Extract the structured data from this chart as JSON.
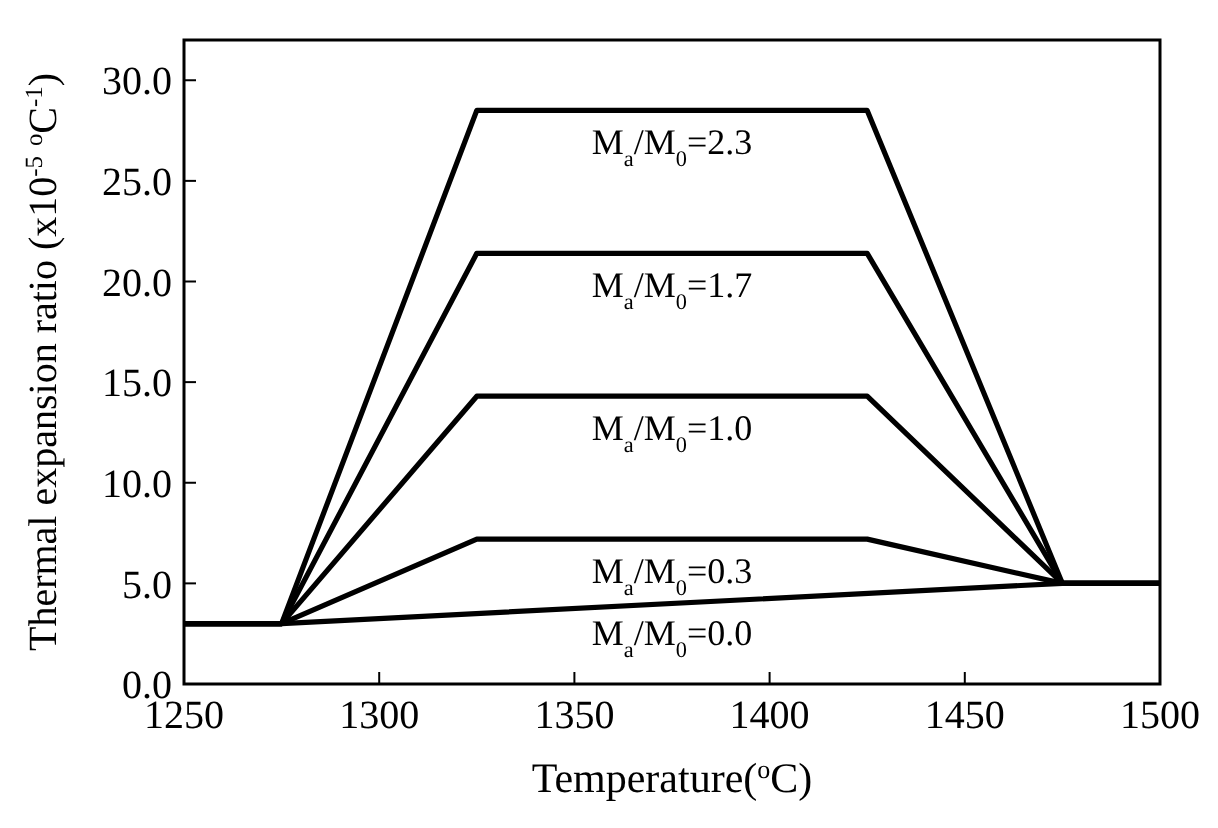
{
  "chart_data": {
    "type": "line",
    "xlabel": "Temperature($^{o}$C)",
    "ylabel": "Thermal expansion ratio (x10$^{-5}$ $^{o}$C$^{-1}$)",
    "xlim": [
      1250,
      1500
    ],
    "xticks": [
      1250,
      1300,
      1350,
      1400,
      1450,
      1500
    ],
    "ylim": [
      0,
      32
    ],
    "yticks": [
      {
        "value": 0,
        "label": "0.0"
      },
      {
        "value": 5,
        "label": "5.0"
      },
      {
        "value": 10,
        "label": "10.0"
      },
      {
        "value": 15,
        "label": "15.0"
      },
      {
        "value": 20,
        "label": "20.0"
      },
      {
        "value": 25,
        "label": "25.0"
      },
      {
        "value": 30,
        "label": "30.0"
      }
    ],
    "grid": false,
    "legend": false,
    "marker": "none",
    "line_style": "solid",
    "series": [
      {
        "name": "M$_{a}$/M$_{0}$=2.3",
        "color": "#000000",
        "x": [
          1250,
          1275,
          1325,
          1425,
          1475,
          1500
        ],
        "values": [
          3.0,
          3.0,
          28.5,
          28.5,
          5.0,
          5.0
        ]
      },
      {
        "name": "M$_{a}$/M$_{0}$=1.7",
        "color": "#000000",
        "x": [
          1250,
          1275,
          1325,
          1425,
          1475,
          1500
        ],
        "values": [
          3.0,
          3.0,
          21.4,
          21.4,
          5.0,
          5.0
        ]
      },
      {
        "name": "M$_{a}$/M$_{0}$=1.0",
        "color": "#000000",
        "x": [
          1250,
          1275,
          1325,
          1425,
          1475,
          1500
        ],
        "values": [
          3.0,
          3.0,
          14.3,
          14.3,
          5.0,
          5.0
        ]
      },
      {
        "name": "M$_{a}$/M$_{0}$=0.3",
        "color": "#000000",
        "x": [
          1250,
          1275,
          1325,
          1425,
          1475,
          1500
        ],
        "values": [
          3.0,
          3.0,
          7.2,
          7.2,
          5.0,
          5.0
        ]
      },
      {
        "name": "M$_{a}$/M$_{0}$=0.0",
        "color": "#000000",
        "x": [
          1250,
          1275,
          1475,
          1500
        ],
        "values": [
          3.0,
          3.0,
          5.0,
          5.0
        ]
      }
    ]
  }
}
